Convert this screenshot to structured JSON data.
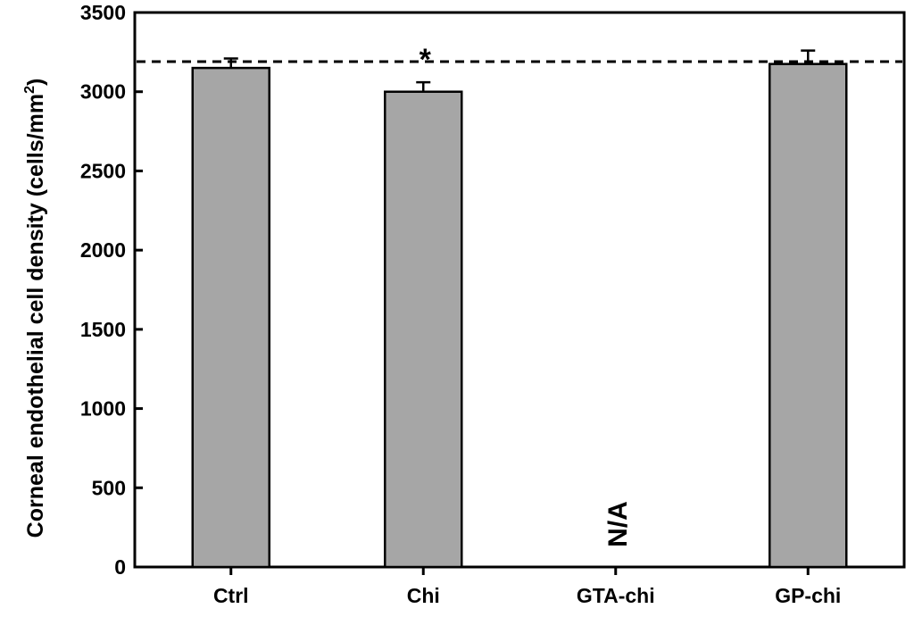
{
  "chart_data": {
    "type": "bar",
    "categories": [
      "Ctrl",
      "Chi",
      "GTA-chi",
      "GP-chi"
    ],
    "values": [
      3150,
      3000,
      null,
      3175
    ],
    "errors": [
      60,
      60,
      null,
      85
    ],
    "ylabel": "Corneal endothelial cell density (cells/mm",
    "ylabel_superscript": "2",
    "ylabel_close": ")",
    "ylim": [
      0,
      3500
    ],
    "yticks": [
      "0",
      "500",
      "1000",
      "1500",
      "2000",
      "2500",
      "3000",
      "3500"
    ],
    "reference_line": {
      "value": 3190,
      "style": "dashed"
    },
    "annotations": [
      {
        "text": "*",
        "category": "Chi"
      },
      {
        "text": "N/A",
        "category": "GTA-chi"
      }
    ],
    "grid": false,
    "colors": {
      "bar": "#a6a6a6",
      "bar_edge": "#000000",
      "axis": "#000000"
    }
  }
}
